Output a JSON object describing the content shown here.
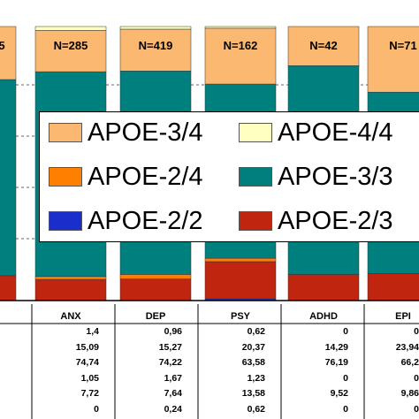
{
  "chart_data": {
    "type": "bar",
    "stacked": true,
    "percent_scale": true,
    "categories": [
      "",
      "ANX",
      "DEP",
      "PSY",
      "ADHD",
      "EPI"
    ],
    "n_labels": [
      "5",
      "N=285",
      "N=419",
      "N=162",
      "N=42",
      "N=71"
    ],
    "series": [
      {
        "name": "APOE-2/2",
        "color": "#1a2ecc",
        "values": [
          null,
          0,
          0.24,
          0.62,
          0,
          0
        ]
      },
      {
        "name": "APOE-2/3",
        "color": "#c0250f",
        "values": [
          null,
          7.72,
          7.64,
          13.58,
          9.52,
          9.86
        ]
      },
      {
        "name": "APOE-2/4",
        "color": "#ff7f00",
        "values": [
          null,
          1.05,
          1.67,
          1.23,
          0,
          0
        ]
      },
      {
        "name": "APOE-3/3",
        "color": "#007f7f",
        "values": [
          null,
          74.74,
          74.22,
          63.58,
          76.19,
          66.2
        ]
      },
      {
        "name": "APOE-3/4",
        "color": "#fbb870",
        "values": [
          null,
          15.09,
          15.27,
          20.37,
          14.29,
          23.94
        ]
      },
      {
        "name": "APOE-4/4",
        "color": "#ffffbf",
        "values": [
          null,
          1.4,
          0.96,
          0.62,
          0,
          0
        ]
      }
    ],
    "table_rows": [
      [
        "1,4",
        "0,96",
        "0,62",
        "0",
        "0"
      ],
      [
        "15,09",
        "15,27",
        "20,37",
        "14,29",
        "23,94"
      ],
      [
        "74,74",
        "74,22",
        "63,58",
        "76,19",
        "66,2"
      ],
      [
        "1,05",
        "1,67",
        "1,23",
        "0",
        "0"
      ],
      [
        "7,72",
        "7,64",
        "13,58",
        "9,52",
        "9,86"
      ],
      [
        "0",
        "0,24",
        "0,62",
        "0",
        "0"
      ]
    ],
    "legend": [
      {
        "name": "APOE-3/4",
        "color": "#fbb870"
      },
      {
        "name": "APOE-4/4",
        "color": "#ffffbf"
      },
      {
        "name": "APOE-2/4",
        "color": "#ff7f00"
      },
      {
        "name": "APOE-3/3",
        "color": "#007f7f"
      },
      {
        "name": "APOE-2/2",
        "color": "#1a2ecc"
      },
      {
        "name": "APOE-2/3",
        "color": "#c0250f"
      }
    ],
    "legend_placement": "center",
    "grid": true
  }
}
